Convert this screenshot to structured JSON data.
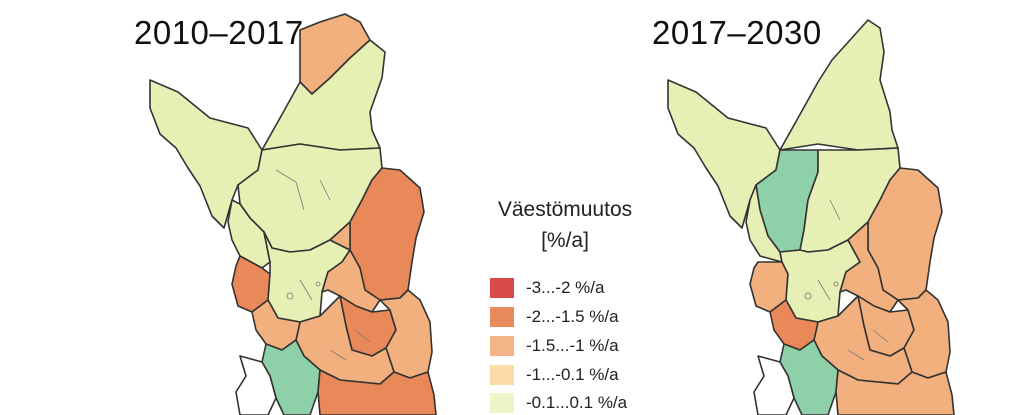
{
  "maps": [
    {
      "title": "2010–2017"
    },
    {
      "title": "2017–2030"
    }
  ],
  "legend": {
    "title_line1": "Väestömuutos",
    "title_line2": "[%/a]",
    "items": [
      {
        "label": "-3...-2 %/a",
        "color": "#d84a4a"
      },
      {
        "label": "-2...-1.5 %/a",
        "color": "#e98a5c"
      },
      {
        "label": "-1.5...-1 %/a",
        "color": "#f3b487"
      },
      {
        "label": "-1...-0.1 %/a",
        "color": "#fbdca8"
      },
      {
        "label": "-0.1...0.1 %/a",
        "color": "#eef4c6"
      }
    ]
  },
  "region_colors": {
    "light_yellow_green": "#e6f0b5",
    "light_orange": "#f2b07e",
    "orange": "#e9895a",
    "green": "#8ed0a8",
    "border": "#333333"
  }
}
